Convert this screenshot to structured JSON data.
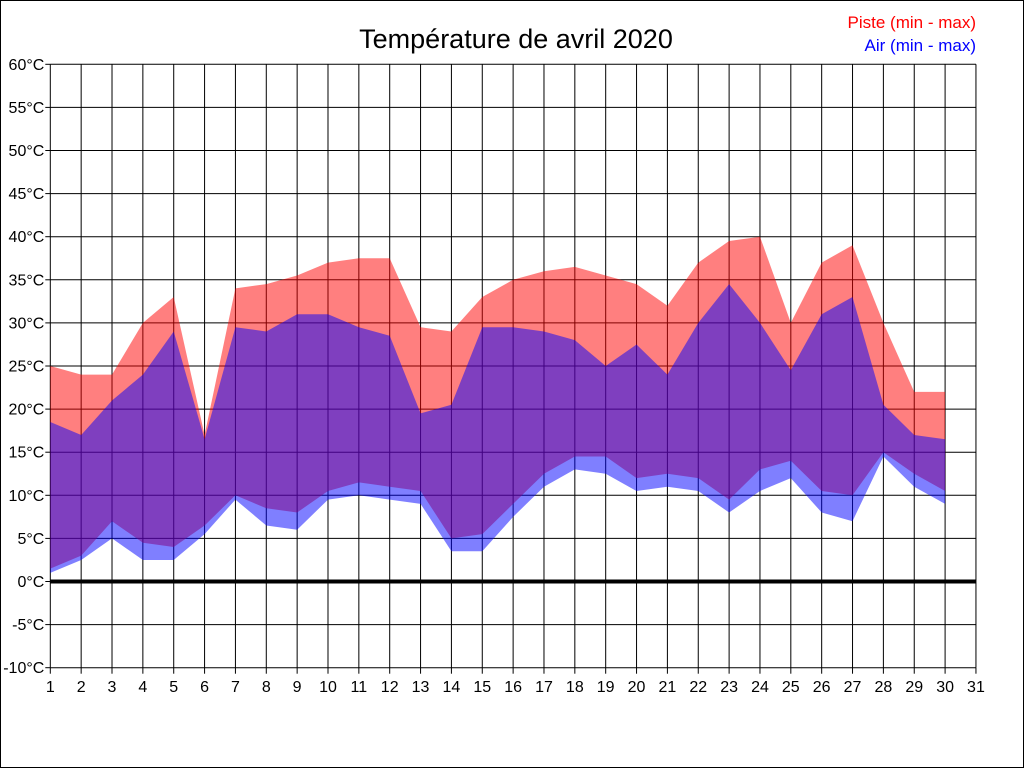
{
  "title": "Température de avril 2020",
  "legend": {
    "piste": {
      "label": "Piste (min - max)",
      "color": "#ff0000"
    },
    "air": {
      "label": "Air (min - max)",
      "color": "#0000ff"
    }
  },
  "chart_data": {
    "type": "area",
    "title": "Température de avril 2020",
    "grid": true,
    "legend_position": "top-right",
    "xlim": [
      1,
      31
    ],
    "ylim": [
      -10,
      60
    ],
    "y_tick_step": 5,
    "zero_line": true,
    "x_tick_labels": [
      "1",
      "2",
      "3",
      "4",
      "5",
      "6",
      "7",
      "8",
      "9",
      "10",
      "11",
      "12",
      "13",
      "14",
      "15",
      "16",
      "17",
      "18",
      "19",
      "20",
      "21",
      "22",
      "23",
      "24",
      "25",
      "26",
      "27",
      "28",
      "29",
      "30",
      "31"
    ],
    "y_tick_values": [
      60,
      55,
      50,
      45,
      40,
      35,
      30,
      25,
      20,
      15,
      10,
      5,
      0,
      -5,
      -10
    ],
    "y_tick_labels": [
      "60°C",
      "55°C",
      "50°C",
      "45°C",
      "40°C",
      "35°C",
      "30°C",
      "25°C",
      "20°C",
      "15°C",
      "10°C",
      "5°C",
      "0°C",
      "-5°C",
      "-10°C"
    ],
    "days": [
      1,
      2,
      3,
      4,
      5,
      6,
      7,
      8,
      9,
      10,
      11,
      12,
      13,
      14,
      15,
      16,
      17,
      18,
      19,
      20,
      21,
      22,
      23,
      24,
      25,
      26,
      27,
      28,
      29,
      30
    ],
    "series": [
      {
        "name": "Piste (min - max)",
        "fill_color": "rgba(255,0,0,0.5)",
        "min": [
          1.5,
          3,
          7,
          4.5,
          4,
          6.5,
          10,
          8.5,
          8,
          10.5,
          11.5,
          11,
          10.5,
          5,
          5.5,
          9,
          12.5,
          14.5,
          14.5,
          12,
          12.5,
          12,
          9.5,
          13,
          14,
          10.5,
          10,
          15,
          12.5,
          10.5
        ],
        "max": [
          25,
          24,
          24,
          30,
          33,
          17,
          34,
          34.5,
          35.5,
          37,
          37.5,
          37.5,
          29.5,
          29,
          33,
          35,
          36,
          36.5,
          35.5,
          34.5,
          32,
          37,
          39.5,
          40,
          30,
          37,
          39,
          30,
          22,
          22
        ]
      },
      {
        "name": "Air (min - max)",
        "fill_color": "rgba(0,0,255,0.5)",
        "min": [
          1,
          2.5,
          5,
          2.5,
          2.5,
          5.5,
          9.5,
          6.5,
          6,
          9.5,
          10,
          9.5,
          9,
          3.5,
          3.5,
          7.5,
          11,
          13,
          12.5,
          10.5,
          11,
          10.5,
          8,
          10.5,
          12,
          8,
          7,
          14.5,
          11,
          9
        ],
        "max": [
          18.5,
          17,
          21,
          24,
          29,
          16.5,
          29.5,
          29,
          31,
          31,
          29.5,
          28.5,
          19.5,
          20.5,
          29.5,
          29.5,
          29,
          28,
          25,
          27.5,
          24,
          30,
          34.5,
          30,
          24.5,
          31,
          33,
          20.5,
          17,
          16.5
        ]
      }
    ]
  }
}
